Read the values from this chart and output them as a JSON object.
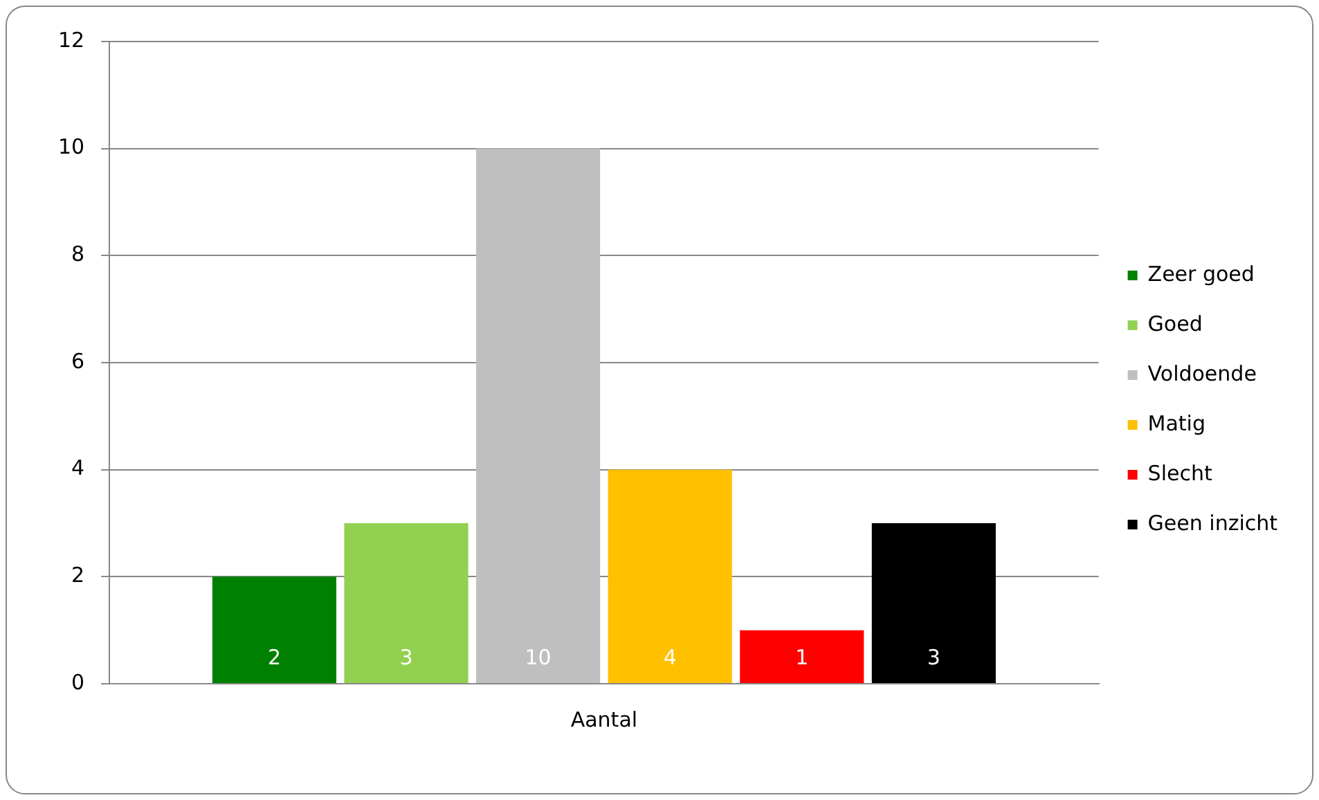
{
  "chart_data": {
    "type": "bar",
    "categories": [
      "Aantal"
    ],
    "series": [
      {
        "name": "Zeer goed",
        "color": "#008000",
        "values": [
          2
        ]
      },
      {
        "name": "Goed",
        "color": "#92d050",
        "values": [
          3
        ]
      },
      {
        "name": "Voldoende",
        "color": "#bfbfbf",
        "values": [
          10
        ]
      },
      {
        "name": "Matig",
        "color": "#ffc000",
        "values": [
          4
        ]
      },
      {
        "name": "Slecht",
        "color": "#ff0000",
        "values": [
          1
        ]
      },
      {
        "name": "Geen inzicht",
        "color": "#000000",
        "values": [
          3
        ]
      }
    ],
    "ylim": [
      0,
      12
    ],
    "yticks": [
      0,
      2,
      4,
      6,
      8,
      10,
      12
    ],
    "grid": "y",
    "legend": "right",
    "data_labels": true
  }
}
